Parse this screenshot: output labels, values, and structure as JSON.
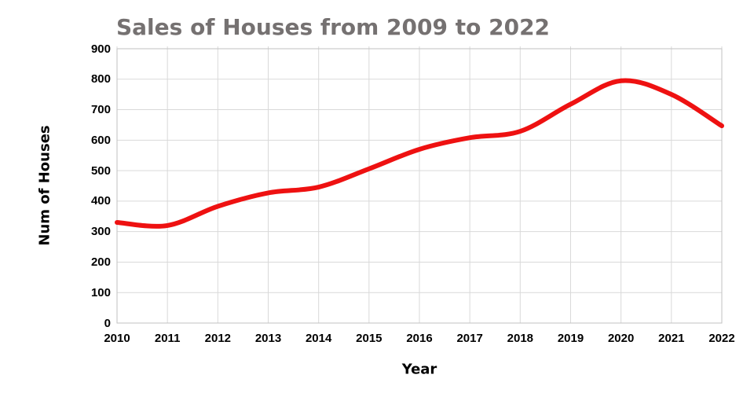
{
  "title": "Sales of Houses from 2009 to 2022",
  "colors": {
    "line": "#ee1111",
    "title_text": "#757171",
    "grid": "#d9d9d9",
    "plot_border": "#c2c2c2",
    "tick_text": "#000000",
    "background": "#ffffff"
  },
  "chart_data": {
    "type": "line",
    "title": "Sales of Houses from 2009 to 2022",
    "xlabel": "Year",
    "ylabel": "Num of Houses",
    "x": [
      2010,
      2011,
      2012,
      2013,
      2014,
      2015,
      2016,
      2017,
      2018,
      2019,
      2020,
      2021,
      2022
    ],
    "series": [
      {
        "name": "Num of Houses",
        "color": "#ee1111",
        "smooth": true,
        "values": [
          330,
          320,
          383,
          427,
          446,
          506,
          570,
          608,
          629,
          718,
          795,
          750,
          647
        ]
      }
    ],
    "ylim": [
      0,
      900
    ],
    "ytick_step": 100,
    "yticks": [
      0,
      100,
      200,
      300,
      400,
      500,
      600,
      700,
      800,
      900
    ],
    "grid": true,
    "legend": false
  }
}
